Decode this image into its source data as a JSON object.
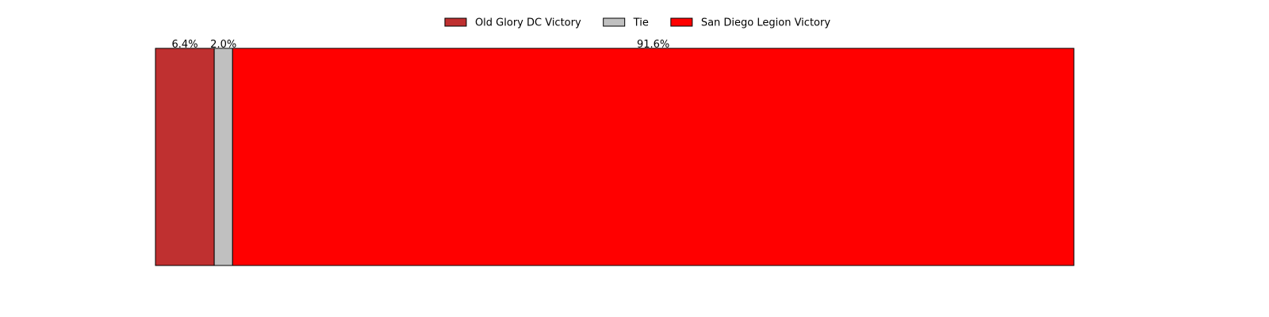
{
  "chart_data": {
    "type": "bar",
    "orientation": "horizontal-stacked",
    "categories": [
      ""
    ],
    "series": [
      {
        "name": "Old Glory DC Victory",
        "values": [
          6.4
        ],
        "color": "#bf3030",
        "label": "6.4%"
      },
      {
        "name": "Tie",
        "values": [
          2.0
        ],
        "color": "#c0c0c0",
        "label": "2.0%"
      },
      {
        "name": "San Diego Legion Victory",
        "values": [
          91.6
        ],
        "color": "#ff0000",
        "label": "91.6%"
      }
    ],
    "xlim": [
      0,
      100
    ],
    "grid": false,
    "axes_visible": false,
    "legend_position": "top-center"
  }
}
